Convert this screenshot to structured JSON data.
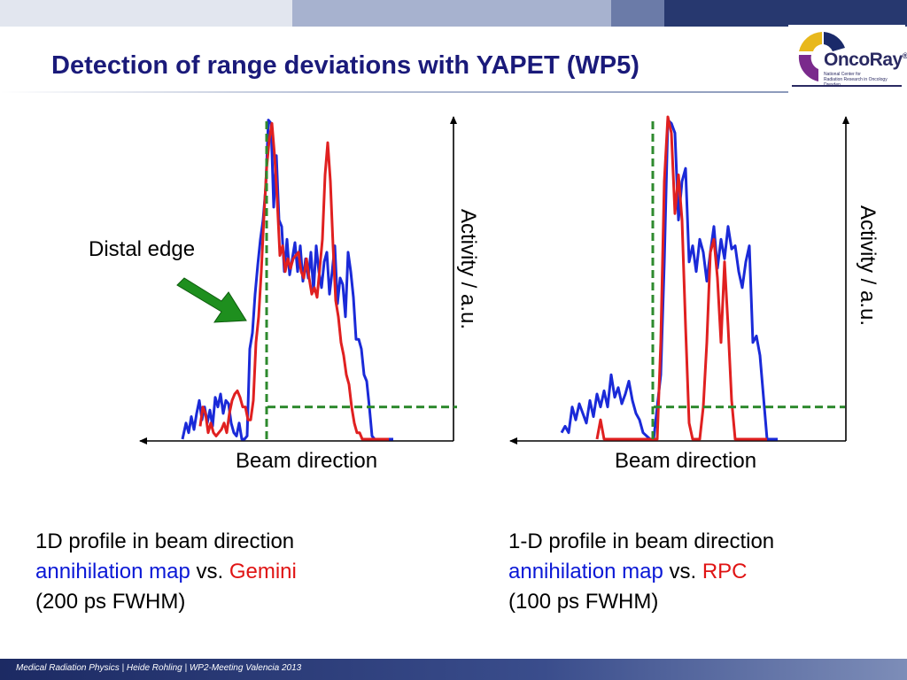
{
  "slide": {
    "title": "Detection of range deviations with YAPET (WP5)",
    "footer": "Medical Radiation Physics | Heide Rohling | WP2-Meeting Valencia 2013",
    "logo": {
      "name": "OncoRay",
      "registered": "®",
      "subtitle": [
        "National Center for",
        "Radiation Research in Oncology",
        "Dresden"
      ]
    },
    "annotation": "Distal edge",
    "left_caption": {
      "line1": "1D profile in beam direction",
      "line2_blue": "annihilation map",
      "line2_mid": " vs. ",
      "line2_red": "Gemini",
      "line3": "(200 ps FWHM)"
    },
    "right_caption": {
      "line1": "1-D profile in beam direction",
      "line2_blue": "annihilation map",
      "line2_mid": " vs. ",
      "line2_red": "RPC",
      "line3": "(100 ps FWHM)"
    }
  },
  "colors": {
    "title": "#1a1a7a",
    "blue_series": "#1a2ad8",
    "red_series": "#e02020",
    "green_lines": "#2e8a2e",
    "arrow": "#1a8a1a"
  },
  "chart_data": [
    {
      "type": "line",
      "xlabel": "Beam direction",
      "ylabel": "Activity / a.u.",
      "x_direction": "reversed (arrow points left)",
      "ylim": [
        0,
        1
      ],
      "series": [
        {
          "name": "annihilation map",
          "color": "blue",
          "x": [
            0,
            4,
            7,
            10,
            13,
            16,
            19,
            22,
            25,
            28,
            31,
            34,
            37,
            40,
            43,
            46,
            49,
            52,
            55,
            58,
            61,
            64,
            67,
            70,
            73,
            76,
            79,
            82,
            85,
            88,
            91,
            94,
            97,
            100,
            103,
            106,
            109,
            112,
            115,
            118,
            121,
            124,
            127,
            130,
            133,
            136,
            139,
            142,
            145,
            148,
            151,
            154,
            157,
            160,
            163,
            166,
            169,
            172,
            175,
            178,
            181,
            184,
            187,
            190,
            193,
            196,
            199,
            202,
            205,
            208,
            211,
            214,
            217,
            220,
            223,
            226,
            229,
            232,
            235,
            238
          ],
          "y": [
            0,
            0.05,
            0.02,
            0.07,
            0.03,
            0.08,
            0.12,
            0.06,
            0.1,
            0.05,
            0.09,
            0.04,
            0.13,
            0.1,
            0.14,
            0.08,
            0.12,
            0.11,
            0.05,
            0.02,
            0.01,
            0.05,
            0.0,
            0.0,
            0.01,
            0.28,
            0.33,
            0.45,
            0.54,
            0.62,
            0.68,
            0.78,
            0.99,
            0.98,
            0.72,
            0.88,
            0.68,
            0.66,
            0.52,
            0.62,
            0.51,
            0.56,
            0.61,
            0.52,
            0.6,
            0.49,
            0.56,
            0.5,
            0.58,
            0.46,
            0.6,
            0.52,
            0.47,
            0.55,
            0.58,
            0.45,
            0.52,
            0.6,
            0.42,
            0.5,
            0.48,
            0.38,
            0.58,
            0.52,
            0.44,
            0.31,
            0.31,
            0.28,
            0.2,
            0.18,
            0.1,
            0.01,
            0.0,
            0.0,
            0.0,
            0.0,
            0.0,
            0.0,
            0.0,
            0.0
          ]
        },
        {
          "name": "Gemini",
          "color": "red",
          "x": [
            20,
            23,
            26,
            29,
            32,
            35,
            38,
            41,
            44,
            47,
            50,
            53,
            56,
            59,
            62,
            65,
            68,
            71,
            74,
            77,
            80,
            83,
            86,
            89,
            92,
            95,
            98,
            101,
            104,
            107,
            110,
            113,
            116,
            119,
            122,
            125,
            128,
            131,
            134,
            137,
            140,
            143,
            146,
            149,
            152,
            155,
            158,
            161,
            164,
            167,
            170,
            173,
            176,
            179,
            182,
            185,
            188,
            191,
            194,
            197,
            200,
            203,
            206,
            209,
            212,
            215,
            218,
            221,
            224,
            227,
            230,
            233
          ],
          "y": [
            0.04,
            0.1,
            0.08,
            0.02,
            0.05,
            0.02,
            0.01,
            0.02,
            0.03,
            0.05,
            0.02,
            0.08,
            0.12,
            0.14,
            0.15,
            0.13,
            0.1,
            0.1,
            0.06,
            0.06,
            0.12,
            0.3,
            0.38,
            0.52,
            0.69,
            0.84,
            0.93,
            0.98,
            0.88,
            0.74,
            0.57,
            0.6,
            0.52,
            0.56,
            0.53,
            0.56,
            0.57,
            0.58,
            0.52,
            0.5,
            0.56,
            0.5,
            0.45,
            0.47,
            0.44,
            0.53,
            0.62,
            0.82,
            0.92,
            0.8,
            0.6,
            0.43,
            0.38,
            0.3,
            0.26,
            0.2,
            0.17,
            0.1,
            0.05,
            0.02,
            0.02,
            0.0,
            0.0,
            0.0,
            0.0,
            0.0,
            0.0,
            0.0,
            0.0,
            0.0,
            0.0,
            0.0
          ]
        },
        {
          "name": "range edge",
          "color": "green",
          "dash": true,
          "x": [
            95,
            95
          ],
          "y": [
            0,
            1
          ]
        },
        {
          "name": "baseline",
          "color": "green",
          "dash": true,
          "x": [
            96,
            310
          ],
          "y": [
            0.1,
            0.1
          ]
        }
      ]
    },
    {
      "type": "line",
      "xlabel": "Beam direction",
      "ylabel": "Activity / a.u.",
      "x_direction": "reversed (arrow points left)",
      "ylim": [
        0,
        1
      ],
      "series": [
        {
          "name": "annihilation map",
          "color": "blue",
          "x": [
            0,
            4,
            8,
            12,
            16,
            20,
            24,
            28,
            32,
            36,
            40,
            44,
            48,
            52,
            56,
            60,
            64,
            68,
            72,
            76,
            80,
            84,
            88,
            92,
            96,
            100,
            104,
            108,
            112,
            116,
            120,
            124,
            128,
            132,
            136,
            140,
            144,
            148,
            152,
            156,
            160,
            164,
            168,
            172,
            176,
            180,
            184,
            188,
            192,
            196,
            200,
            204,
            208,
            212,
            216,
            220,
            224,
            228,
            232,
            236,
            240,
            244
          ],
          "y": [
            0.02,
            0.04,
            0.02,
            0.1,
            0.06,
            0.11,
            0.08,
            0.05,
            0.12,
            0.07,
            0.14,
            0.1,
            0.15,
            0.1,
            0.2,
            0.13,
            0.16,
            0.11,
            0.14,
            0.18,
            0.12,
            0.08,
            0.06,
            0.02,
            0.01,
            0.0,
            0.0,
            0.1,
            0.2,
            0.55,
            0.99,
            0.98,
            0.95,
            0.68,
            0.8,
            0.84,
            0.55,
            0.6,
            0.52,
            0.62,
            0.58,
            0.49,
            0.58,
            0.66,
            0.53,
            0.62,
            0.56,
            0.66,
            0.59,
            0.6,
            0.52,
            0.47,
            0.55,
            0.6,
            0.3,
            0.32,
            0.26,
            0.13,
            0.0,
            0.0,
            0.0,
            0.0
          ]
        },
        {
          "name": "RPC",
          "color": "red",
          "x": [
            40,
            44,
            48,
            52,
            56,
            60,
            64,
            68,
            72,
            76,
            80,
            84,
            88,
            92,
            96,
            100,
            104,
            108,
            112,
            116,
            120,
            124,
            128,
            132,
            136,
            140,
            144,
            148,
            152,
            156,
            160,
            164,
            168,
            172,
            176,
            180,
            184,
            188,
            192,
            196,
            200,
            204,
            208,
            212,
            216,
            220,
            224,
            228,
            232
          ],
          "y": [
            0.0,
            0.06,
            0.0,
            0.0,
            0.0,
            0.0,
            0.0,
            0.0,
            0.0,
            0.0,
            0.0,
            0.0,
            0.0,
            0.0,
            0.0,
            0.0,
            0.0,
            0.0,
            0.3,
            0.8,
            1.0,
            0.95,
            0.7,
            0.82,
            0.68,
            0.35,
            0.05,
            0.0,
            0.0,
            0.0,
            0.1,
            0.3,
            0.58,
            0.62,
            0.5,
            0.3,
            0.55,
            0.35,
            0.12,
            0.0,
            0.0,
            0.0,
            0.0,
            0.0,
            0.0,
            0.0,
            0.0,
            0.0,
            0.0
          ]
        },
        {
          "name": "range edge",
          "color": "green",
          "dash": true,
          "x": [
            103,
            103
          ],
          "y": [
            0,
            1
          ]
        },
        {
          "name": "baseline",
          "color": "green",
          "dash": true,
          "x": [
            104,
            320
          ],
          "y": [
            0.1,
            0.1
          ]
        }
      ]
    }
  ]
}
